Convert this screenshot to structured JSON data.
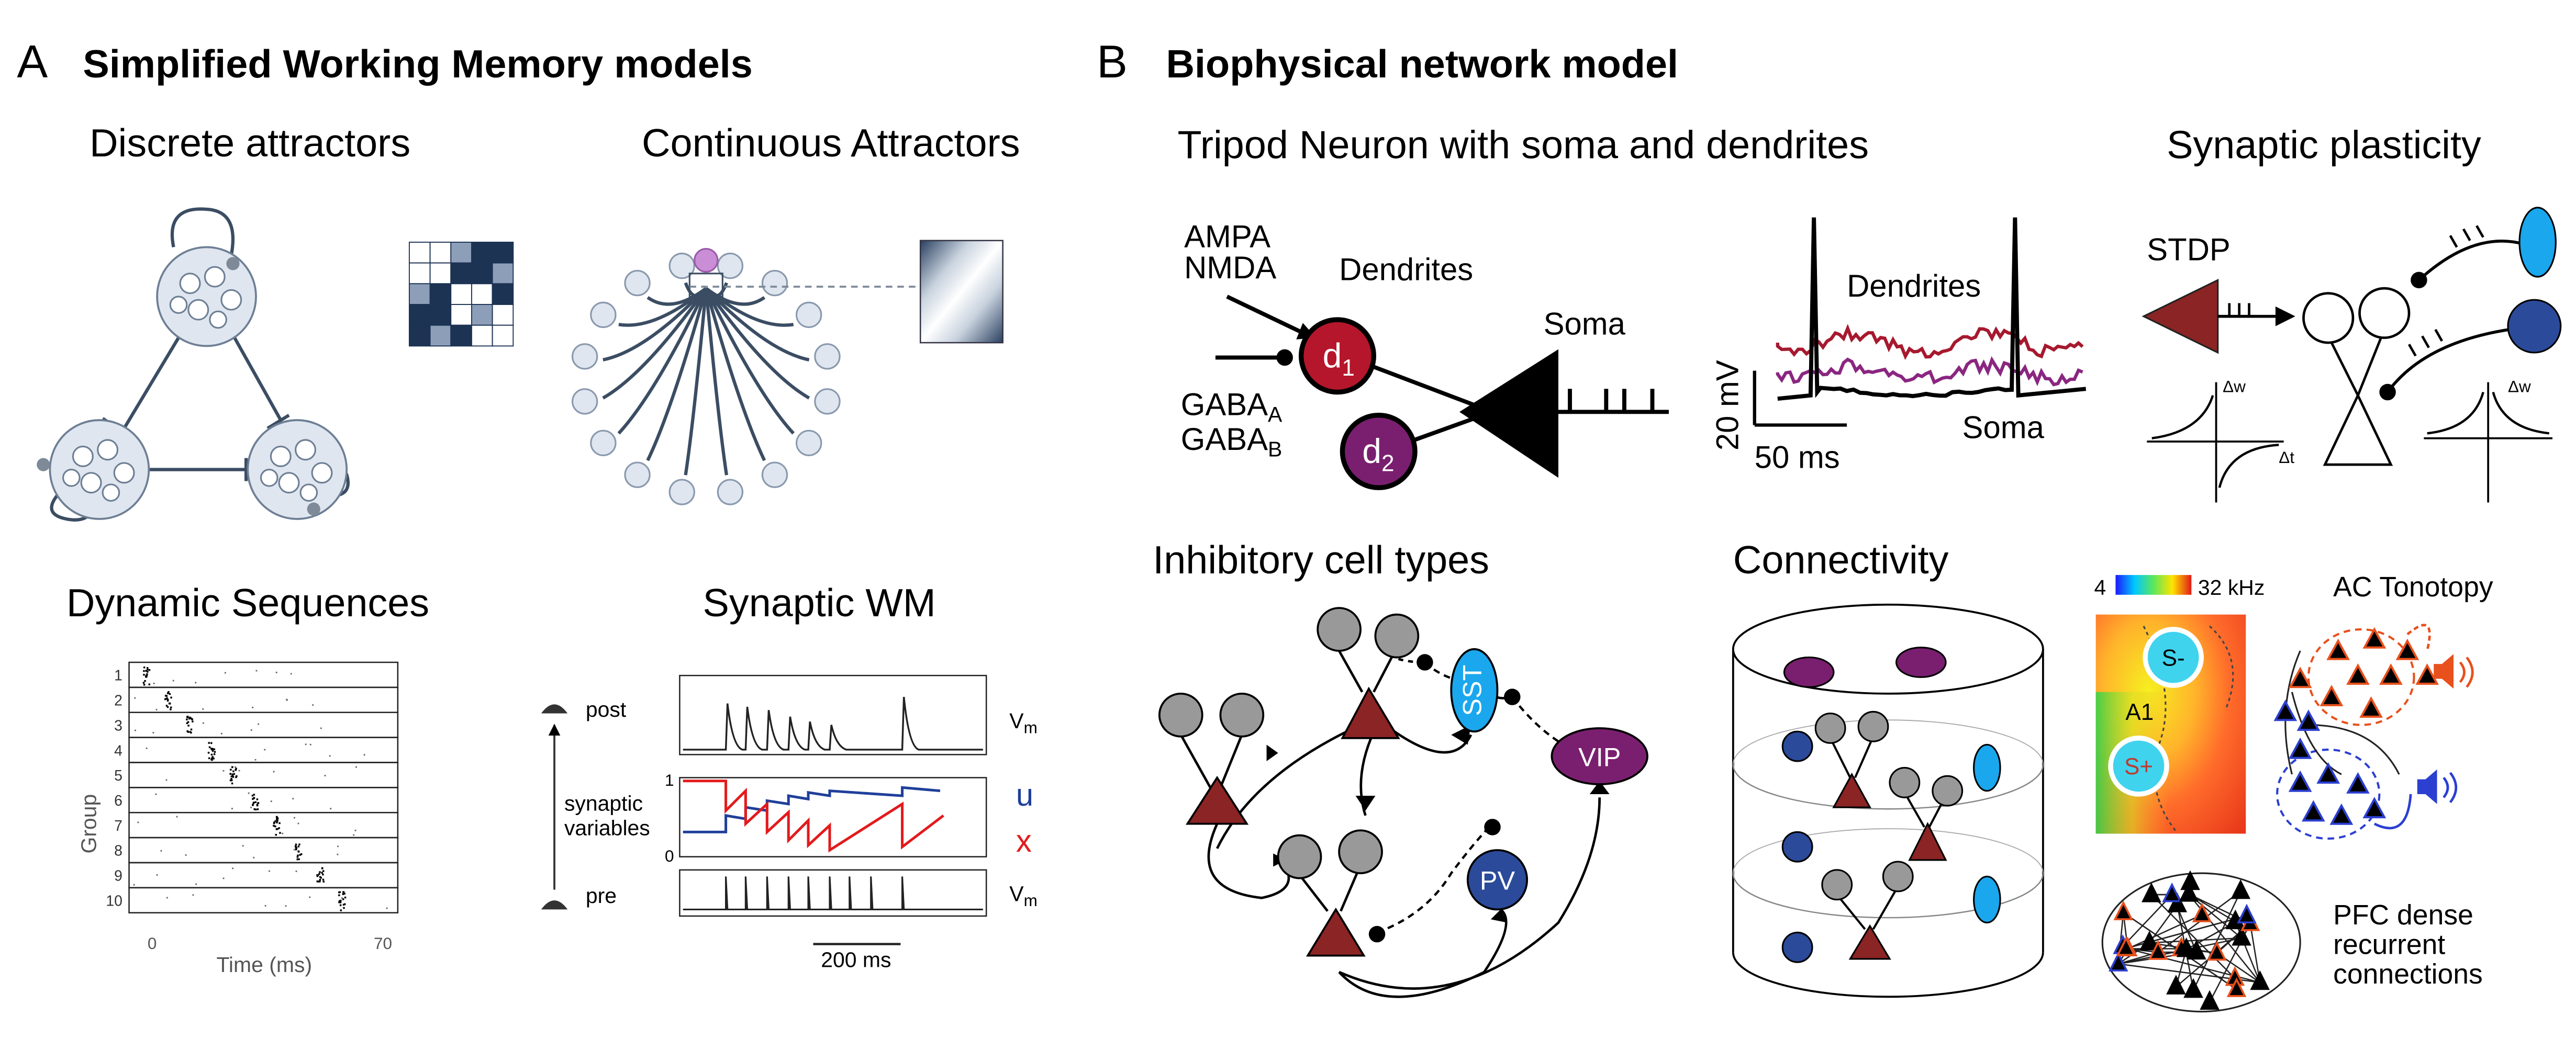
{
  "panel_a": {
    "letter": "A",
    "title": "Simplified Working Memory models",
    "discrete": {
      "title": "Discrete attractors"
    },
    "continuous": {
      "title": "Continuous Attractors"
    },
    "sequences": {
      "title": "Dynamic  Sequences",
      "ylabel": "Group",
      "xlabel": "Time (ms)",
      "x_start": "0",
      "x_end": "70",
      "groups": [
        "1",
        "2",
        "3",
        "4",
        "5",
        "6",
        "7",
        "8",
        "9",
        "10"
      ]
    },
    "synaptic_wm": {
      "title": "Synaptic WM",
      "post": "post",
      "pre": "pre",
      "synaptic": "synaptic",
      "variables": "variables",
      "vm_main": "V",
      "vm_sub": "m",
      "u": "u",
      "x": "x",
      "y1": "1",
      "y0": "0",
      "scalebar": "200 ms"
    }
  },
  "panel_b": {
    "letter": "B",
    "title": "Biophysical network model",
    "tripod": {
      "title": "Tripod Neuron with soma and dendrites",
      "ampa": "AMPA",
      "nmda": "NMDA",
      "gaba_main": "GABA",
      "gaba_a_sub": "A",
      "gaba_b_sub": "B",
      "dendrites": "Dendrites",
      "soma": "Soma",
      "d": "d",
      "d1_sub": "1",
      "d2_sub": "2",
      "trace_dendrites": "Dendrites",
      "trace_soma": "Soma",
      "scale_mv": "20 mV",
      "scale_ms": "50 ms"
    },
    "plasticity": {
      "title": "Synaptic plasticity",
      "stdp": "STDP",
      "dw": "Δw",
      "dt": "Δt"
    },
    "inhibitory": {
      "title": "Inhibitory cell types",
      "sst": "SST",
      "vip": "VIP",
      "pv": "PV"
    },
    "connectivity": {
      "title": "Connectivity"
    },
    "tonotopy": {
      "scale_low": "4",
      "scale_high": "32 kHz",
      "title": "AC Tonotopy",
      "s_minus": "S-",
      "s_plus": "S+",
      "a1": "A1"
    },
    "pfc": {
      "line1": "PFC dense",
      "line2": "recurrent",
      "line3": "connections"
    }
  },
  "colors": {
    "dark_red": "#8b2424",
    "purple": "#7a1f6f",
    "d1_red": "#b5162b",
    "pv_blue": "#2b4a9a",
    "sst_cyan": "#1aa7ee",
    "u_blue": "#1f3f9a",
    "x_red": "#e31a1c",
    "slate": "#3b4d63",
    "orange": "#e8501c"
  }
}
